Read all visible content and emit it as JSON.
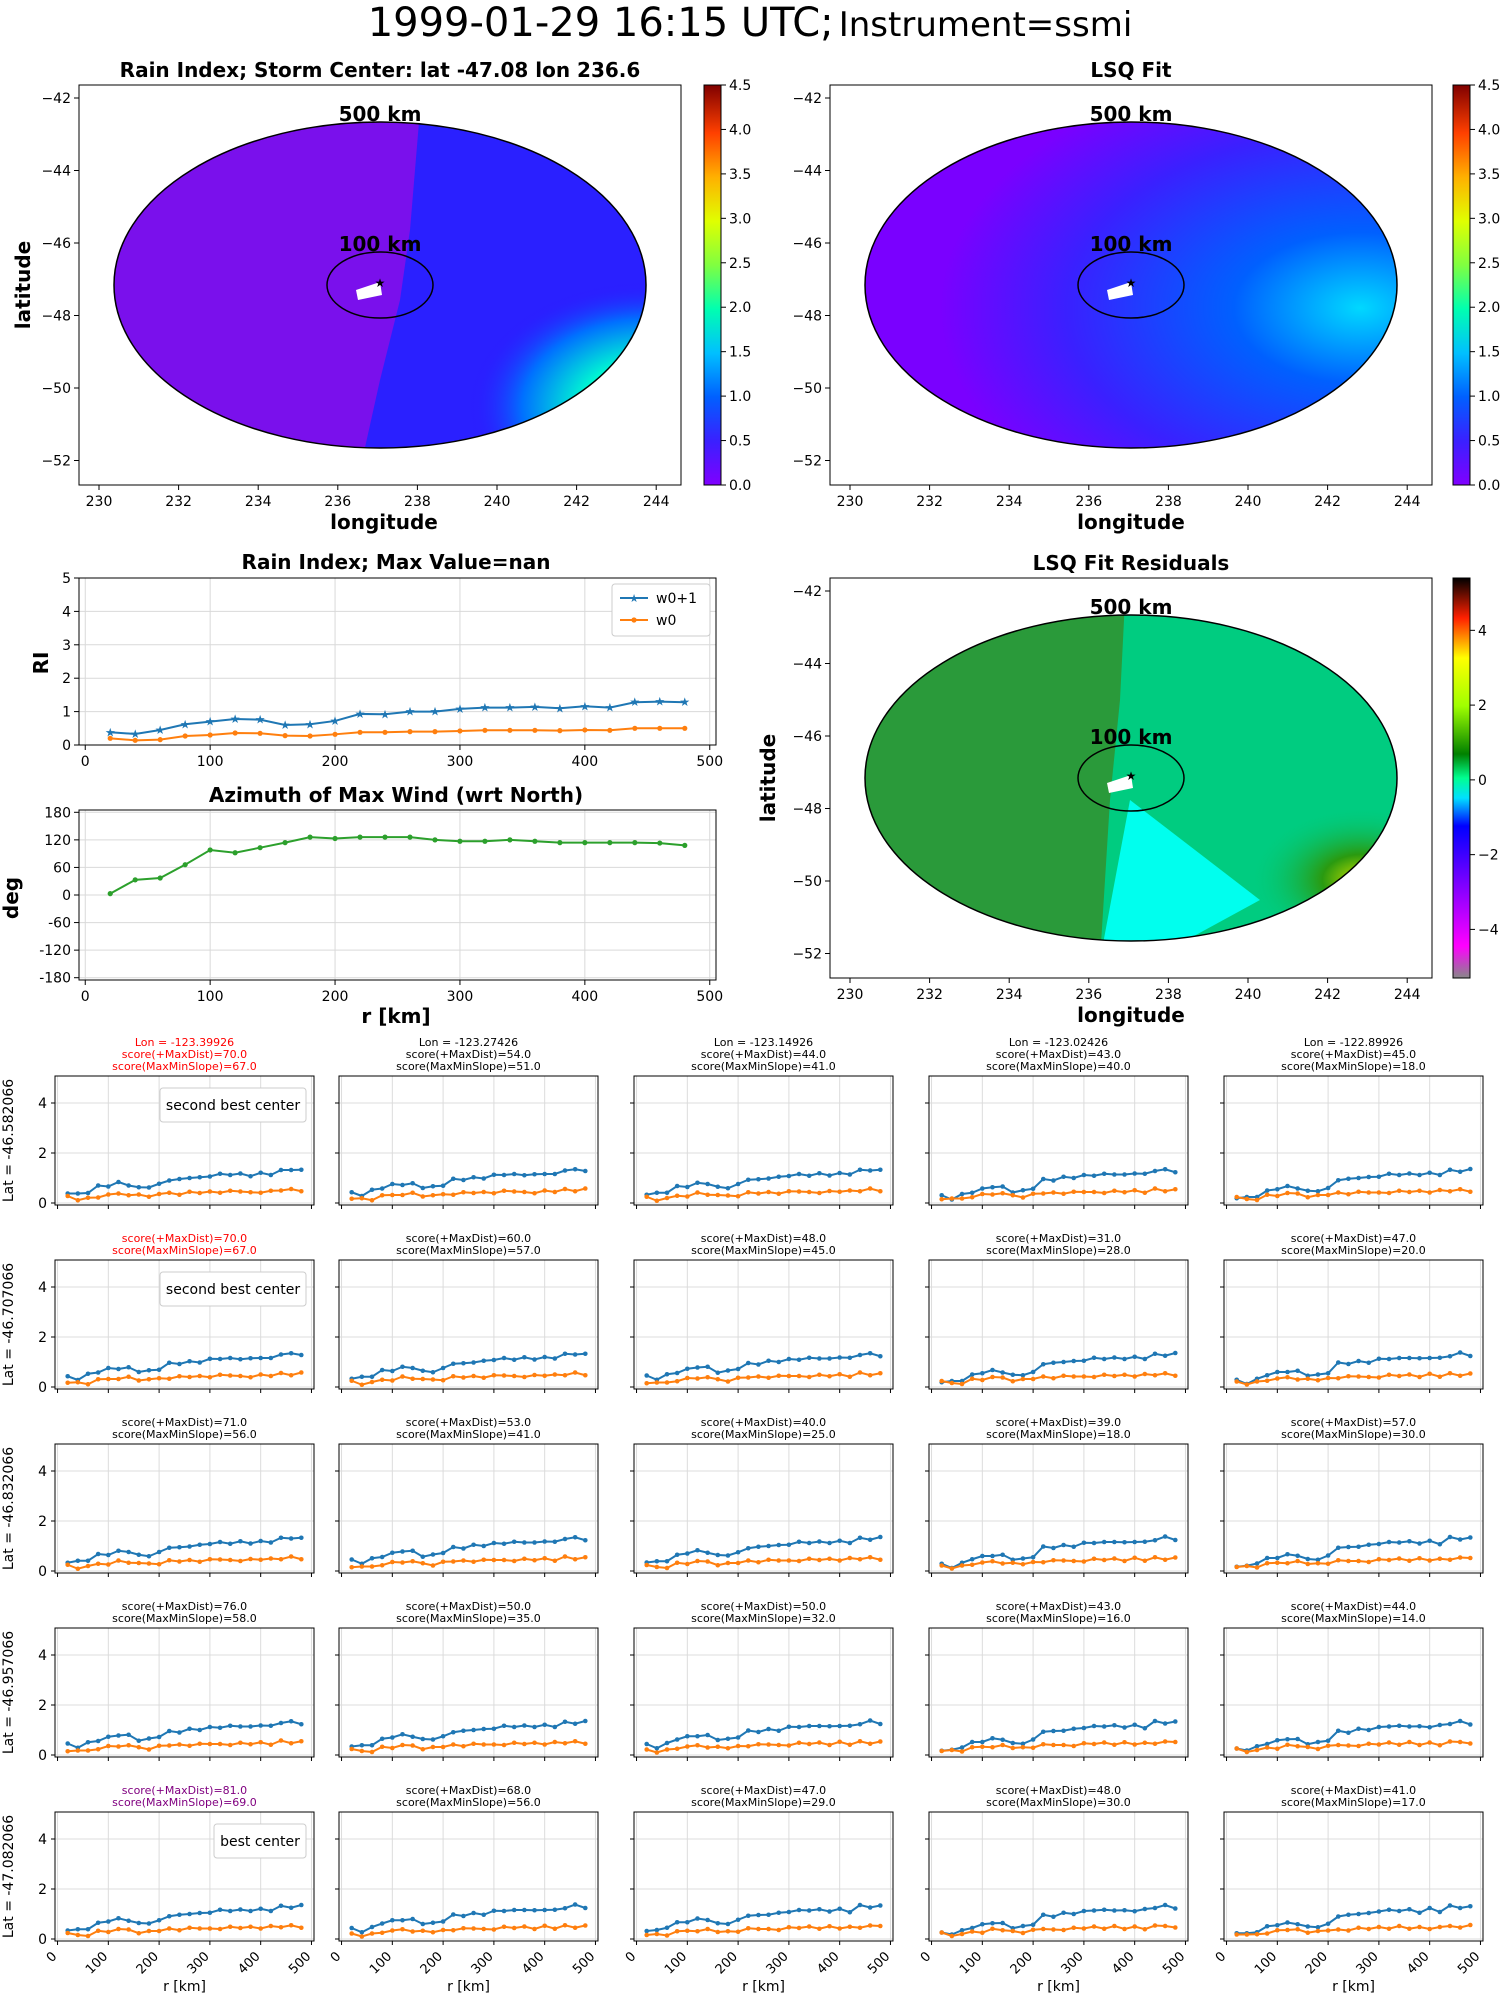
{
  "suptitle": {
    "main": "1999-01-29 16:15 UTC;",
    "instrument": "Instrument=ssmi"
  },
  "colors": {
    "w0p1": "#1f77b4",
    "w0": "#ff7f0e",
    "azimuth": "#2ca02c",
    "red": "#ff0000",
    "purple": "#800080"
  },
  "maps": {
    "rain_index": {
      "title": "Rain Index; Storm Center: lat -47.08 lon 236.6",
      "xlabel": "longitude",
      "ylabel": "latitude",
      "ring_500": "500 km",
      "ring_100": "100 km",
      "colorbar_ticks": [
        "0.0",
        "0.5",
        "1.0",
        "1.5",
        "2.0",
        "2.5",
        "3.0",
        "3.5",
        "4.0",
        "4.5"
      ]
    },
    "lsq_fit": {
      "title": "LSQ Fit",
      "xlabel": "longitude",
      "ring_500": "500 km",
      "ring_100": "100 km",
      "colorbar_ticks": [
        "0.0",
        "0.5",
        "1.0",
        "1.5",
        "2.0",
        "2.5",
        "3.0",
        "3.5",
        "4.0",
        "4.5"
      ]
    },
    "residuals": {
      "title": "LSQ Fit Residuals",
      "xlabel": "longitude",
      "ylabel": "latitude",
      "ring_500": "500 km",
      "ring_100": "100 km",
      "colorbar_ticks": [
        "4",
        "2",
        "0",
        "−2",
        "−4"
      ]
    },
    "x_ticks": [
      "230",
      "232",
      "234",
      "236",
      "238",
      "240",
      "242",
      "244"
    ],
    "y_ticks": [
      "−42",
      "−44",
      "−46",
      "−48",
      "−50",
      "−52"
    ]
  },
  "chart_data": [
    {
      "type": "line",
      "title": "Rain Index; Max Value=nan",
      "ylabel": "RI",
      "xlim": [
        -5,
        505
      ],
      "ylim": [
        0,
        5
      ],
      "x_ticks": [
        0,
        100,
        200,
        300,
        400,
        500
      ],
      "y_ticks": [
        0,
        1,
        2,
        3,
        4,
        5
      ],
      "grid": true,
      "legend": "top-right",
      "x": [
        20,
        40,
        60,
        80,
        100,
        120,
        140,
        160,
        180,
        200,
        220,
        240,
        260,
        280,
        300,
        320,
        340,
        360,
        380,
        400,
        420,
        440,
        460,
        480
      ],
      "series": [
        {
          "name": "w0+1",
          "values": [
            0.38,
            0.33,
            0.45,
            0.62,
            0.7,
            0.78,
            0.76,
            0.6,
            0.62,
            0.72,
            0.93,
            0.92,
            1.0,
            1.0,
            1.08,
            1.12,
            1.12,
            1.14,
            1.1,
            1.16,
            1.12,
            1.28,
            1.3,
            1.28
          ]
        },
        {
          "name": "w0",
          "values": [
            0.2,
            0.14,
            0.16,
            0.27,
            0.3,
            0.36,
            0.35,
            0.28,
            0.27,
            0.32,
            0.38,
            0.38,
            0.4,
            0.4,
            0.42,
            0.44,
            0.44,
            0.44,
            0.43,
            0.45,
            0.44,
            0.5,
            0.5,
            0.5
          ]
        }
      ]
    },
    {
      "type": "line",
      "title": "Azimuth of Max Wind (wrt North)",
      "xlabel": "r [km]",
      "ylabel": "deg",
      "xlim": [
        -5,
        505
      ],
      "ylim": [
        -185,
        185
      ],
      "x_ticks": [
        0,
        100,
        200,
        300,
        400,
        500
      ],
      "y_ticks": [
        180,
        120,
        60,
        0,
        -60,
        -120,
        -180
      ],
      "grid": true,
      "x": [
        20,
        40,
        60,
        80,
        100,
        120,
        140,
        160,
        180,
        200,
        220,
        240,
        260,
        280,
        300,
        320,
        340,
        360,
        380,
        400,
        420,
        440,
        460,
        480
      ],
      "series": [
        {
          "values": [
            3,
            33,
            37,
            66,
            98,
            92,
            103,
            114,
            126,
            123,
            126,
            126,
            126,
            120,
            117,
            117,
            120,
            117,
            114,
            114,
            114,
            114,
            113,
            108
          ]
        }
      ]
    }
  ],
  "grid_plots": {
    "xlabel": "r [km]",
    "x_ticks": [
      "0",
      "100",
      "200",
      "300",
      "400",
      "500"
    ],
    "y_ticks": [
      "0",
      "2",
      "4"
    ],
    "rows": [
      {
        "ylabel": "Lat = -46.582066",
        "cells": [
          {
            "lines": [
              "Lon = -123.39926",
              "score(+MaxDist)=70.0",
              "score(MaxMinSlope)=67.0"
            ],
            "color": "red",
            "legend": "second best center"
          },
          {
            "lines": [
              "Lon = -123.27426",
              "score(+MaxDist)=54.0",
              "score(MaxMinSlope)=51.0"
            ]
          },
          {
            "lines": [
              "Lon = -123.14926",
              "score(+MaxDist)=44.0",
              "score(MaxMinSlope)=41.0"
            ]
          },
          {
            "lines": [
              "Lon = -123.02426",
              "score(+MaxDist)=43.0",
              "score(MaxMinSlope)=40.0"
            ]
          },
          {
            "lines": [
              "Lon = -122.89926",
              "score(+MaxDist)=45.0",
              "score(MaxMinSlope)=18.0"
            ]
          }
        ]
      },
      {
        "ylabel": "Lat = -46.707066",
        "cells": [
          {
            "lines": [
              "score(+MaxDist)=70.0",
              "score(MaxMinSlope)=67.0"
            ],
            "color": "red",
            "legend": "second best center"
          },
          {
            "lines": [
              "score(+MaxDist)=60.0",
              "score(MaxMinSlope)=57.0"
            ]
          },
          {
            "lines": [
              "score(+MaxDist)=48.0",
              "score(MaxMinSlope)=45.0"
            ]
          },
          {
            "lines": [
              "score(+MaxDist)=31.0",
              "score(MaxMinSlope)=28.0"
            ]
          },
          {
            "lines": [
              "score(+MaxDist)=47.0",
              "score(MaxMinSlope)=20.0"
            ]
          }
        ]
      },
      {
        "ylabel": "Lat = -46.832066",
        "cells": [
          {
            "lines": [
              "score(+MaxDist)=71.0",
              "score(MaxMinSlope)=56.0"
            ]
          },
          {
            "lines": [
              "score(+MaxDist)=53.0",
              "score(MaxMinSlope)=41.0"
            ]
          },
          {
            "lines": [
              "score(+MaxDist)=40.0",
              "score(MaxMinSlope)=25.0"
            ]
          },
          {
            "lines": [
              "score(+MaxDist)=39.0",
              "score(MaxMinSlope)=18.0"
            ]
          },
          {
            "lines": [
              "score(+MaxDist)=57.0",
              "score(MaxMinSlope)=30.0"
            ]
          }
        ]
      },
      {
        "ylabel": "Lat = -46.957066",
        "cells": [
          {
            "lines": [
              "score(+MaxDist)=76.0",
              "score(MaxMinSlope)=58.0"
            ]
          },
          {
            "lines": [
              "score(+MaxDist)=50.0",
              "score(MaxMinSlope)=35.0"
            ]
          },
          {
            "lines": [
              "score(+MaxDist)=50.0",
              "score(MaxMinSlope)=32.0"
            ]
          },
          {
            "lines": [
              "score(+MaxDist)=43.0",
              "score(MaxMinSlope)=16.0"
            ]
          },
          {
            "lines": [
              "score(+MaxDist)=44.0",
              "score(MaxMinSlope)=14.0"
            ]
          }
        ]
      },
      {
        "ylabel": "Lat = -47.082066",
        "cells": [
          {
            "lines": [
              "score(+MaxDist)=81.0",
              "score(MaxMinSlope)=69.0"
            ],
            "color": "purple",
            "legend": "best center"
          },
          {
            "lines": [
              "score(+MaxDist)=68.0",
              "score(MaxMinSlope)=56.0"
            ]
          },
          {
            "lines": [
              "score(+MaxDist)=47.0",
              "score(MaxMinSlope)=29.0"
            ]
          },
          {
            "lines": [
              "score(+MaxDist)=48.0",
              "score(MaxMinSlope)=30.0"
            ]
          },
          {
            "lines": [
              "score(+MaxDist)=41.0",
              "score(MaxMinSlope)=17.0"
            ]
          }
        ]
      }
    ]
  }
}
